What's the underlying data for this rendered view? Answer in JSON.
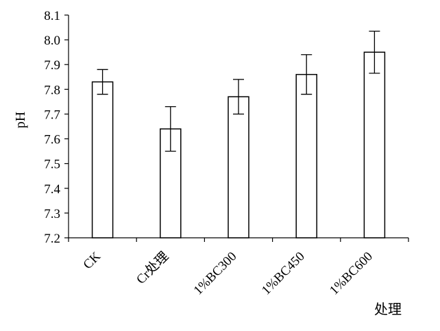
{
  "chart_data": {
    "type": "bar",
    "title": "",
    "xlabel": "处理",
    "ylabel": "pH",
    "ylim": [
      7.2,
      8.1
    ],
    "yticks": [
      "7.2",
      "7.3",
      "7.4",
      "7.5",
      "7.6",
      "7.7",
      "7.8",
      "7.9",
      "8.0",
      "8.1"
    ],
    "categories": [
      "CK",
      "Cr处理",
      "1%BC300",
      "1%BC450",
      "1%BC600"
    ],
    "values": [
      7.83,
      7.64,
      7.77,
      7.86,
      7.95
    ],
    "errors": [
      0.05,
      0.09,
      0.07,
      0.08,
      0.085
    ],
    "bar_fill": "#ffffff",
    "bar_stroke": "#000000",
    "grid": false,
    "legend": "none"
  }
}
